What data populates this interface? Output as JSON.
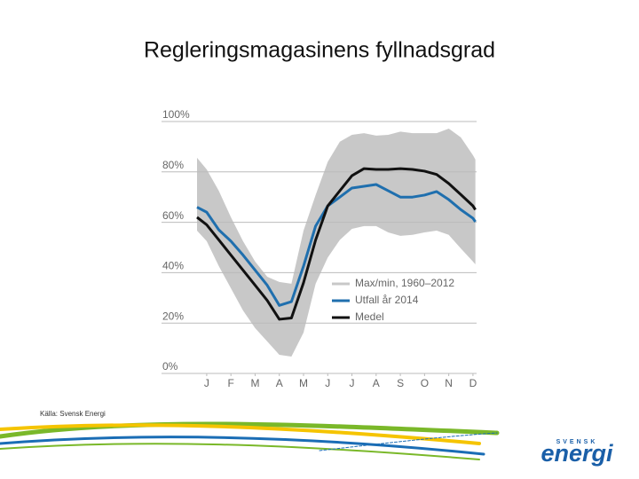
{
  "title": "Regleringsmagasinens fyllnadsgrad",
  "source": "Källa: Svensk Energi",
  "logo": {
    "top": "SVENSK",
    "word": "energi"
  },
  "chart_data": {
    "type": "line",
    "x": [
      -0.4,
      0,
      0.5,
      1,
      1.5,
      2,
      2.5,
      3,
      3.5,
      4,
      4.5,
      5,
      5.5,
      6,
      6.5,
      7,
      7.5,
      8,
      8.5,
      9,
      9.5,
      10,
      10.5,
      11,
      11.1
    ],
    "xlim": [
      -0.4,
      11.15
    ],
    "xticks": [
      {
        "value": 0,
        "label": "J"
      },
      {
        "value": 1,
        "label": "F"
      },
      {
        "value": 2,
        "label": "M"
      },
      {
        "value": 3,
        "label": "A"
      },
      {
        "value": 4,
        "label": "M"
      },
      {
        "value": 5,
        "label": "J"
      },
      {
        "value": 6,
        "label": "J"
      },
      {
        "value": 7,
        "label": "A"
      },
      {
        "value": 8,
        "label": "S"
      },
      {
        "value": 9,
        "label": "O"
      },
      {
        "value": 10,
        "label": "N"
      },
      {
        "value": 11,
        "label": "D"
      }
    ],
    "ylim": [
      0,
      100
    ],
    "yticks": [
      {
        "value": 0,
        "label": "0%"
      },
      {
        "value": 20,
        "label": "20%"
      },
      {
        "value": 40,
        "label": "40%"
      },
      {
        "value": 60,
        "label": "60%"
      },
      {
        "value": 80,
        "label": "80%"
      },
      {
        "value": 100,
        "label": "100%"
      }
    ],
    "grid": true,
    "band": {
      "name": "Max/min, 1960–2012",
      "color": "#c8c8c8",
      "max": [
        85.6,
        81,
        72.5,
        62,
        52.5,
        44.4,
        38.4,
        36.3,
        35.6,
        56.7,
        70.8,
        84,
        92,
        94.7,
        95.4,
        94.4,
        94.7,
        96,
        95.4,
        95.4,
        95.4,
        97.2,
        93.7,
        86.6,
        84.9
      ],
      "min": [
        56.7,
        52.5,
        42.6,
        33.8,
        25,
        18,
        12.7,
        7.4,
        6.7,
        16.2,
        35.6,
        46,
        53,
        57.4,
        58.5,
        58.5,
        56,
        54.6,
        55,
        56,
        56.7,
        55,
        49.6,
        44.4,
        43.3
      ]
    },
    "series": [
      {
        "name": "Utfall år 2014",
        "color": "#1f6fae",
        "values": [
          66,
          64,
          57,
          52.5,
          47,
          41,
          35,
          27,
          28.5,
          42.6,
          58.5,
          66.5,
          70,
          73.6,
          74.3,
          75,
          72.5,
          70,
          70,
          70.8,
          72.2,
          69,
          65,
          61.6,
          60.2
        ]
      },
      {
        "name": "Medel",
        "color": "#111111",
        "values": [
          62,
          59,
          53,
          47,
          41,
          35,
          29,
          21.5,
          22,
          36,
          53,
          66.5,
          72.5,
          78.5,
          81.3,
          81,
          81,
          81.3,
          81,
          80.3,
          79,
          75.4,
          71,
          66.5,
          65
        ]
      }
    ]
  }
}
